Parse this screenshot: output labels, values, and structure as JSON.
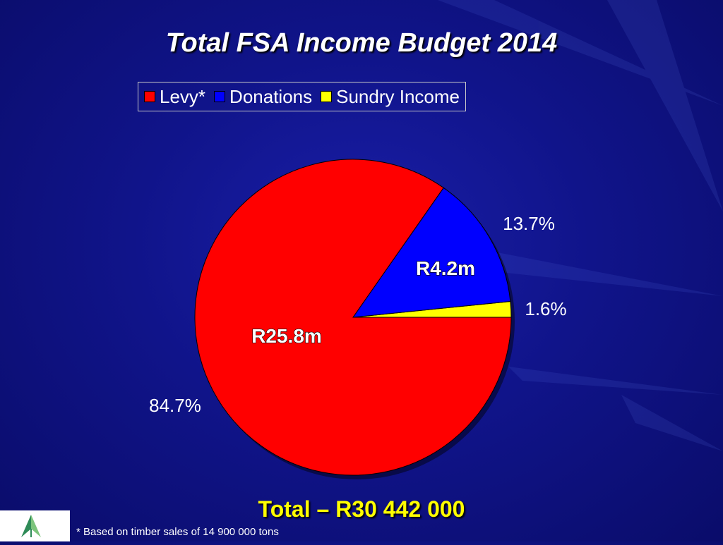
{
  "slide": {
    "title": "Total FSA Income Budget 2014",
    "total": "Total – R30 442 000",
    "footnote": "* Based on timber sales of 14 900 000 tons"
  },
  "logo": {
    "icon": "tree-icon"
  },
  "colors": {
    "levy": "#ff0000",
    "donations": "#0000ff",
    "sundry": "#ffff00"
  },
  "chart_data": {
    "type": "pie",
    "title": "Total FSA Income Budget 2014",
    "legend_position": "top",
    "categories": [
      "Levy*",
      "Donations",
      "Sundry Income"
    ],
    "values": [
      84.7,
      13.7,
      1.6
    ],
    "percent_labels": [
      "84.7%",
      "13.7%",
      "1.6%"
    ],
    "value_labels": [
      "R25.8m",
      "R4.2m",
      ""
    ],
    "colors": [
      "#ff0000",
      "#0000ff",
      "#ffff00"
    ]
  }
}
